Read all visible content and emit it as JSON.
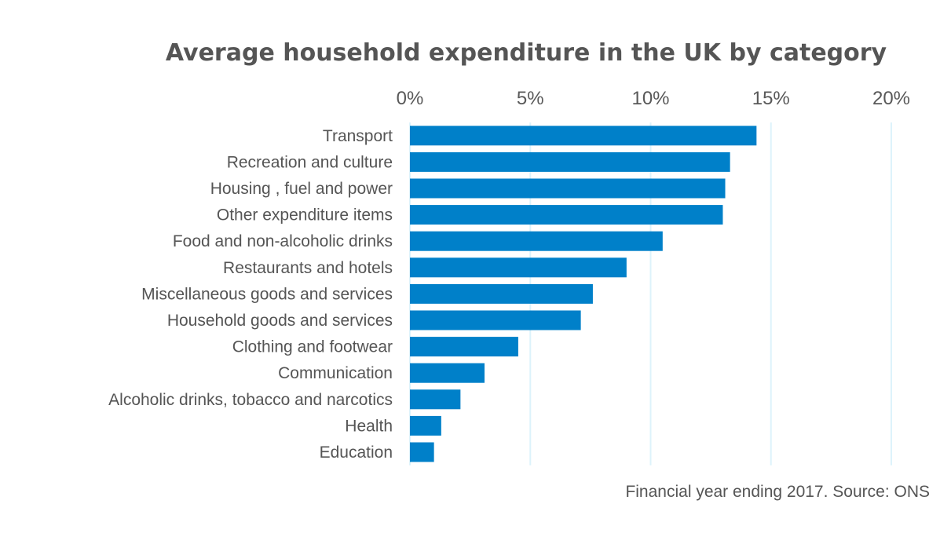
{
  "chart_data": {
    "type": "bar",
    "orientation": "horizontal",
    "title": "Average household expenditure in the UK by category",
    "categories": [
      "Transport",
      "Recreation and culture",
      "Housing , fuel and power",
      "Other expenditure items",
      "Food and non-alcoholic drinks",
      "Restaurants and hotels",
      "Miscellaneous goods and services",
      "Household goods and services",
      "Clothing and footwear",
      "Communication",
      "Alcoholic drinks, tobacco and narcotics",
      "Health",
      "Education"
    ],
    "values": [
      14.4,
      13.3,
      13.1,
      13.0,
      10.5,
      9.0,
      7.6,
      7.1,
      4.5,
      3.1,
      2.1,
      1.3,
      1.0
    ],
    "unit": "%",
    "xlim": [
      0,
      20
    ],
    "xticks": [
      0,
      5,
      10,
      15,
      20
    ],
    "xtick_labels": [
      "0%",
      "5%",
      "10%",
      "15%",
      "20%"
    ],
    "axis_position": "top",
    "grid": true,
    "bar_color": "#0080C9",
    "grid_color": "#DDF3FB",
    "note": "Financial year ending 2017. Source: ONS"
  }
}
